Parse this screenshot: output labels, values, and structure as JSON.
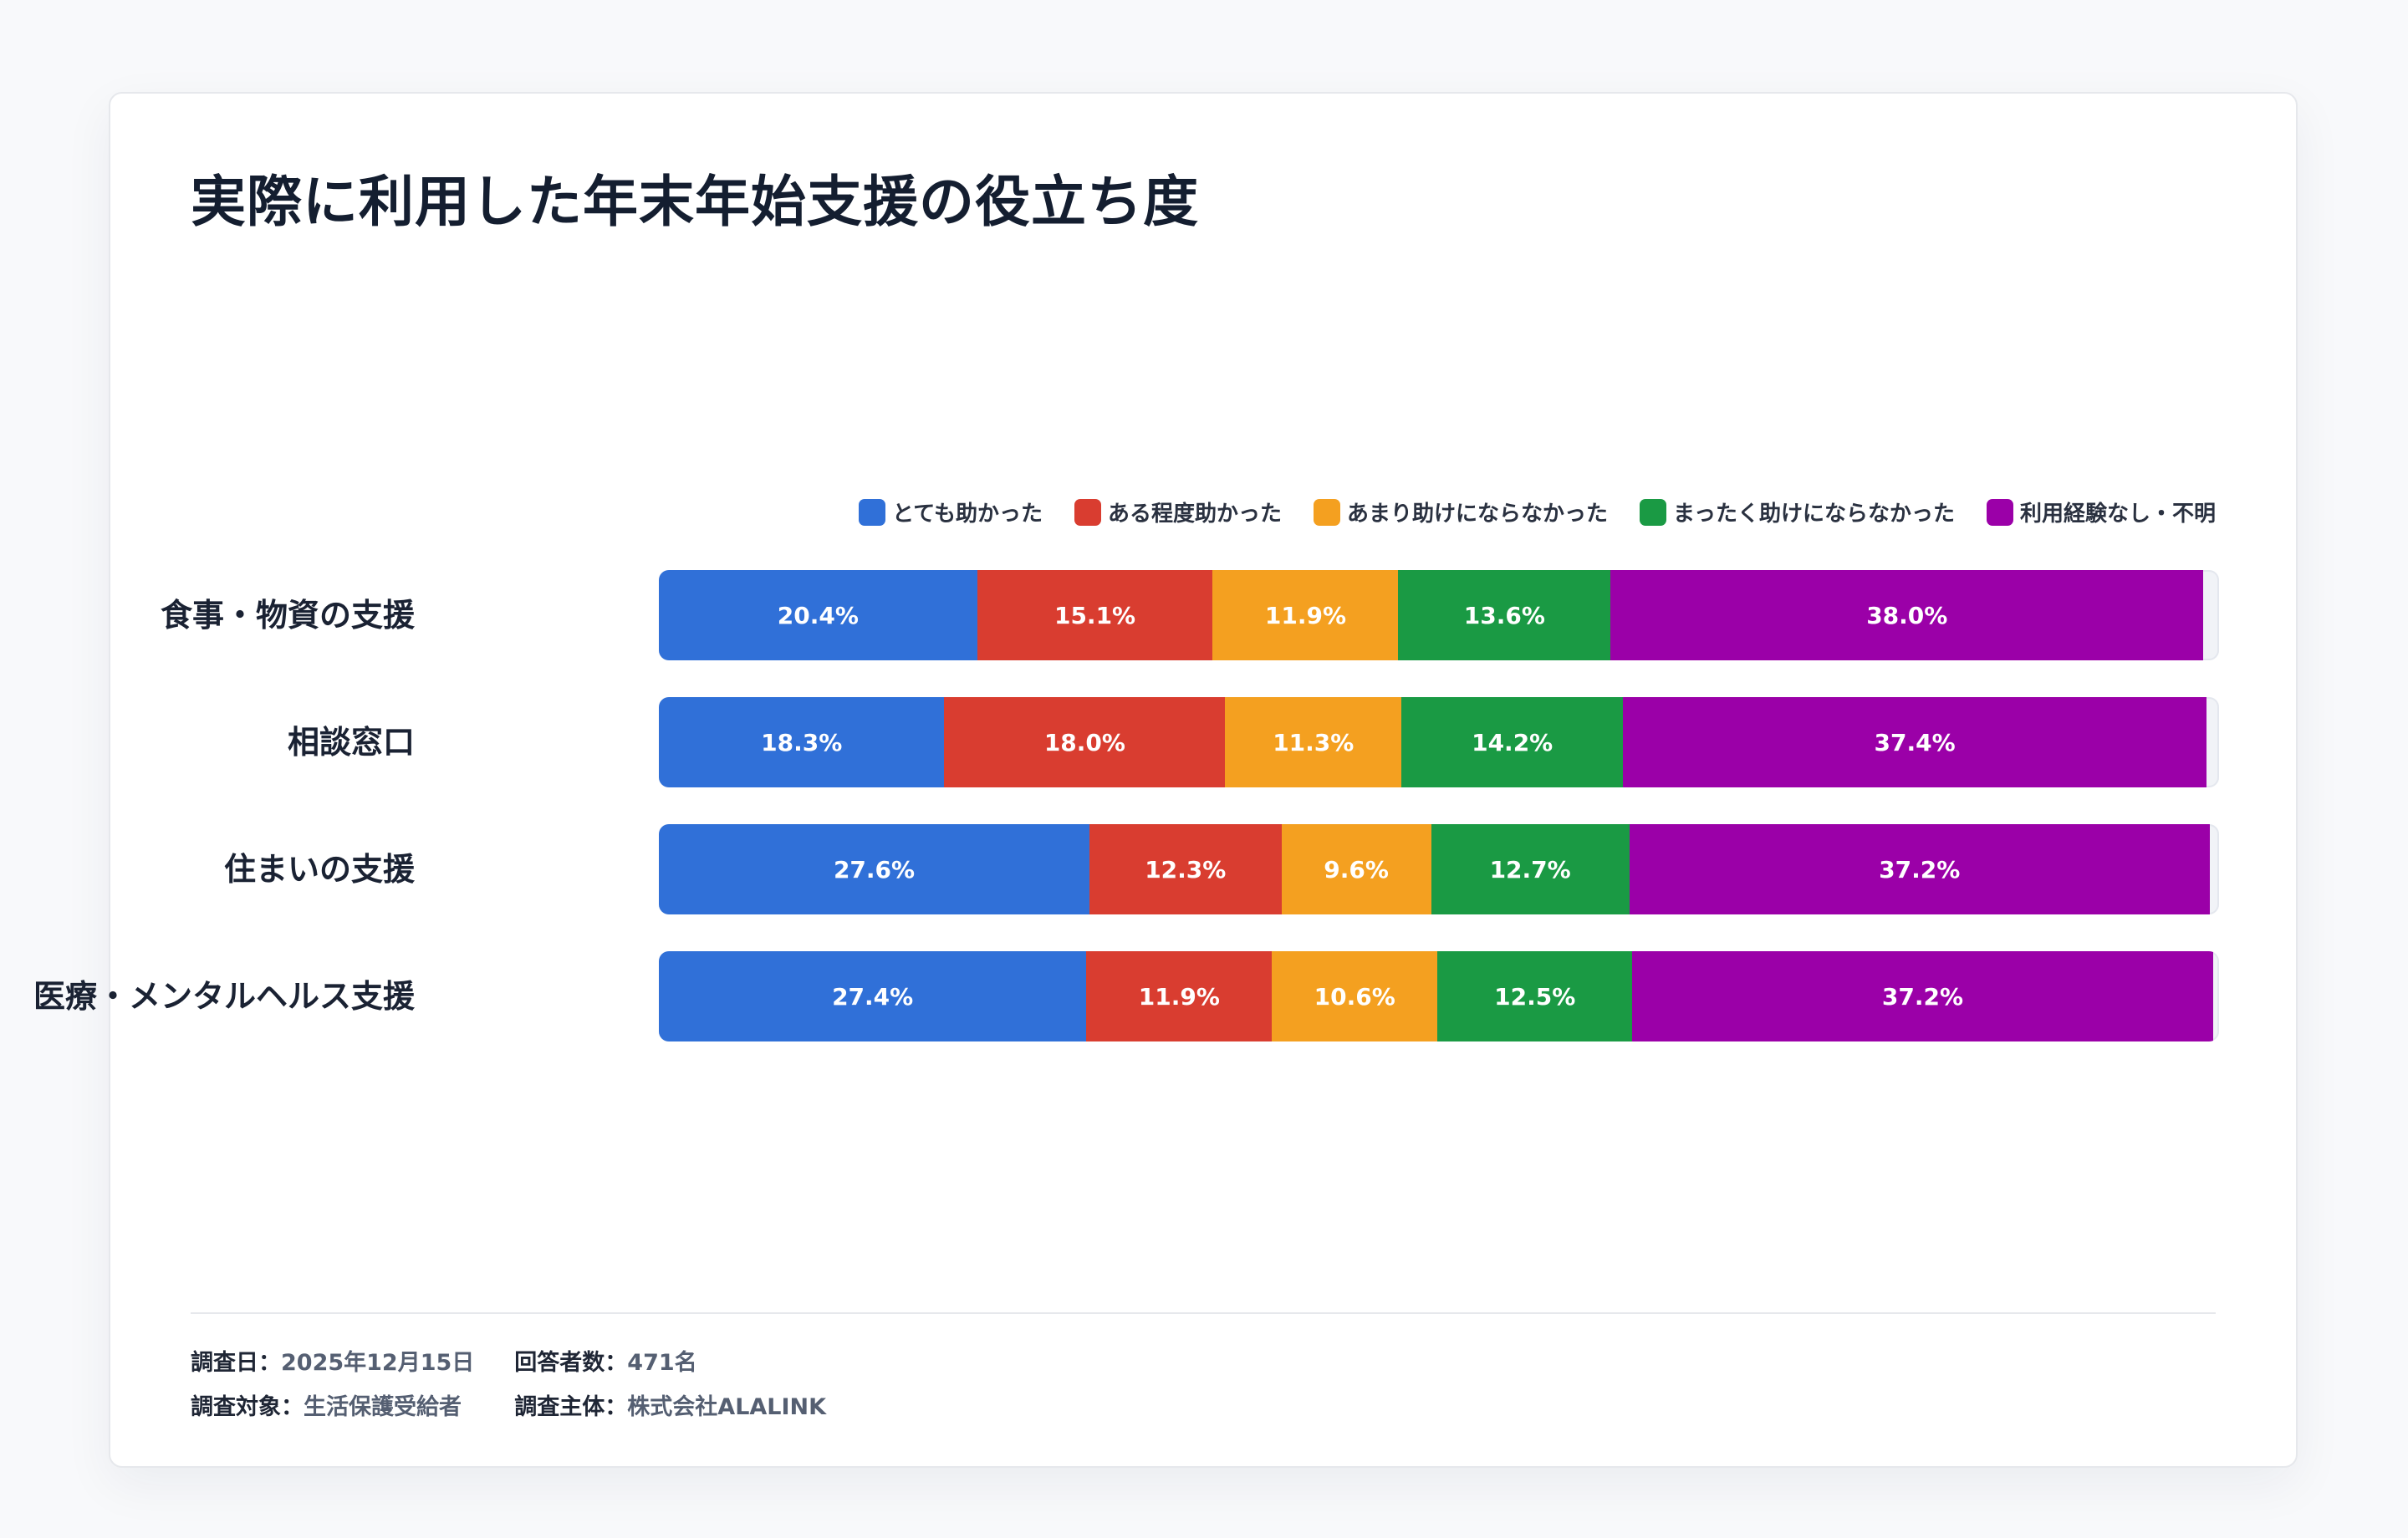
{
  "chart_data": {
    "type": "bar",
    "orientation": "horizontal",
    "stacked": true,
    "title": "実際に利用した年末年始支援の役立ち度",
    "categories": [
      "食事・物資の支援",
      "相談窓口",
      "住まいの支援",
      "医療・メンタルヘルス支援"
    ],
    "series": [
      {
        "name": "とても助かった",
        "color": "#3070d8",
        "values": [
          20.4,
          18.3,
          27.6,
          27.4
        ]
      },
      {
        "name": "ある程度助かった",
        "color": "#d93d30",
        "values": [
          15.1,
          18.0,
          12.3,
          11.9
        ]
      },
      {
        "name": "あまり助けにならなかった",
        "color": "#f4a020",
        "values": [
          11.9,
          11.3,
          9.6,
          10.6
        ]
      },
      {
        "name": "まったく助けにならなかった",
        "color": "#1a9a44",
        "values": [
          13.6,
          14.2,
          12.7,
          12.5
        ]
      },
      {
        "name": "利用経験なし・不明",
        "color": "#9b00a8",
        "values": [
          38.0,
          37.4,
          37.2,
          37.2
        ]
      }
    ],
    "value_suffix": "%",
    "xlim": [
      0,
      100
    ],
    "legend_position": "top-right",
    "grid": false
  },
  "footer": {
    "items": [
      {
        "key": "調査日：",
        "value": "2025年12月15日"
      },
      {
        "key": "回答者数：",
        "value": "471名"
      },
      {
        "key": "調査対象：",
        "value": "生活保護受給者"
      },
      {
        "key": "調査主体：",
        "value": "株式会社ALALINK"
      }
    ]
  }
}
